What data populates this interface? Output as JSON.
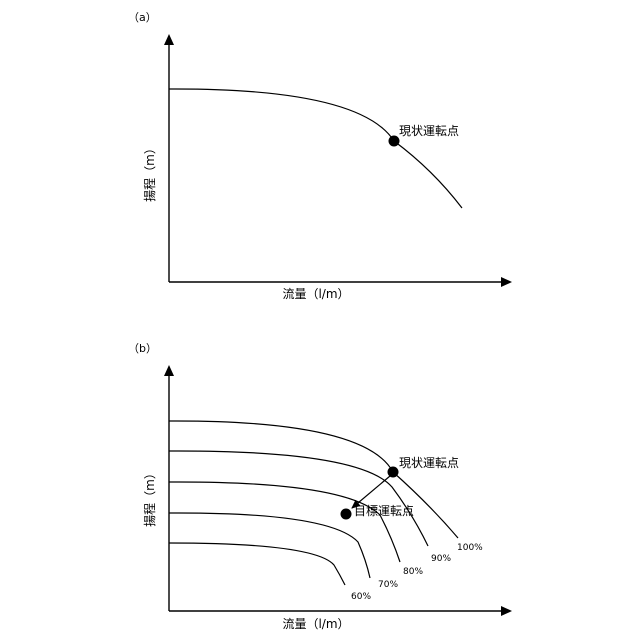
{
  "panels": [
    {
      "id": "a",
      "label": "（a）",
      "ylabel": "揚程（m）",
      "xlabel": "流量（l/m）",
      "point_label": "現状運転点"
    },
    {
      "id": "b",
      "label": "（b）",
      "ylabel": "揚程（m）",
      "xlabel": "流量（l/m）",
      "current_point_label": "現状運転点",
      "target_point_label": "目標運転点",
      "curve_labels": [
        "100%",
        "90%",
        "80%",
        "70%",
        "60%"
      ]
    }
  ]
}
